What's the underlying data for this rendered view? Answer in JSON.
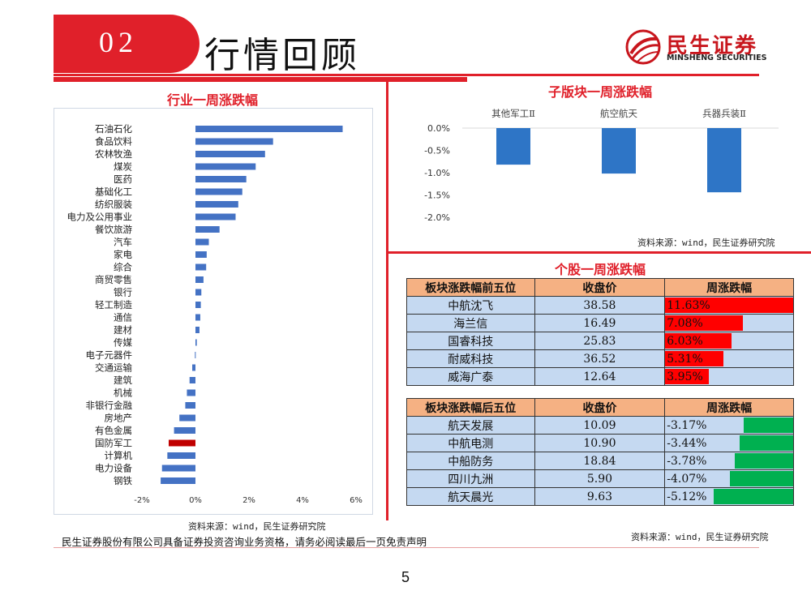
{
  "header": {
    "section_number": "02",
    "title": "行情回顾",
    "logo_cn": "民生证券",
    "logo_en": "MINSHENG SECURITIES",
    "brand_color": "#e0202a"
  },
  "industry_panel": {
    "title": "行业一周涨跌幅",
    "source": "资料来源：wind，民生证券研究院"
  },
  "subsector_panel": {
    "title": "子版块一周涨跌幅",
    "source": "资料来源：wind，民生证券研究院"
  },
  "stock_panel": {
    "title": "个股一周涨跌幅",
    "source": "资料来源：wind，民生证券研究院",
    "top": {
      "headers": [
        "板块涨跌幅前五位",
        "收盘价",
        "周涨跌幅"
      ],
      "rows": [
        {
          "name": "中航沈飞",
          "close": "38.58",
          "change": "11.63%",
          "value": 11.63
        },
        {
          "name": "海兰信",
          "close": "16.49",
          "change": "7.08%",
          "value": 7.08
        },
        {
          "name": "国睿科技",
          "close": "25.83",
          "change": "6.03%",
          "value": 6.03
        },
        {
          "name": "耐威科技",
          "close": "36.52",
          "change": "5.31%",
          "value": 5.31
        },
        {
          "name": "威海广泰",
          "close": "12.64",
          "change": "3.95%",
          "value": 3.95
        }
      ],
      "bar_color": "#ff0000"
    },
    "bottom": {
      "headers": [
        "板块涨跌幅后五位",
        "收盘价",
        "周涨跌幅"
      ],
      "rows": [
        {
          "name": "航天发展",
          "close": "10.09",
          "change": "-3.17%",
          "value": -3.17
        },
        {
          "name": "中航电测",
          "close": "10.90",
          "change": "-3.44%",
          "value": -3.44
        },
        {
          "name": "中船防务",
          "close": "18.84",
          "change": "-3.78%",
          "value": -3.78
        },
        {
          "name": "四川九洲",
          "close": "5.90",
          "change": "-4.07%",
          "value": -4.07
        },
        {
          "name": "航天晨光",
          "close": "9.63",
          "change": "-5.12%",
          "value": -5.12
        }
      ],
      "bar_color": "#00b050"
    }
  },
  "footer": {
    "disclaimer": "民生证券股份有限公司具备证券投资咨询业务资格，请务必阅读最后一页免责声明",
    "page_number": "5"
  },
  "chart_data": [
    {
      "type": "bar",
      "orientation": "horizontal",
      "title": "行业一周涨跌幅",
      "categories": [
        "石油石化",
        "食品饮料",
        "农林牧渔",
        "煤炭",
        "医药",
        "基础化工",
        "纺织服装",
        "电力及公用事业",
        "餐饮旅游",
        "汽车",
        "家电",
        "综合",
        "商贸零售",
        "银行",
        "轻工制造",
        "通信",
        "建材",
        "传媒",
        "电子元器件",
        "交通运输",
        "建筑",
        "机械",
        "非银行金融",
        "房地产",
        "有色金属",
        "国防军工",
        "计算机",
        "电力设备",
        "钢铁"
      ],
      "values": [
        5.5,
        2.9,
        2.6,
        2.25,
        1.9,
        1.75,
        1.6,
        1.5,
        0.9,
        0.5,
        0.42,
        0.4,
        0.3,
        0.22,
        0.2,
        0.18,
        0.15,
        0.05,
        -0.02,
        -0.12,
        -0.22,
        -0.32,
        -0.38,
        -0.6,
        -0.8,
        -1.0,
        -1.05,
        -1.25,
        -1.3
      ],
      "highlight": "国防军工",
      "xlim": [
        -2,
        6
      ],
      "xticks": [
        "-2%",
        "0%",
        "2%",
        "4%",
        "6%"
      ],
      "bar_color": "#4472c4",
      "highlight_color": "#c00000"
    },
    {
      "type": "bar",
      "title": "子版块一周涨跌幅",
      "categories": [
        "其他军工Ⅱ",
        "航空航天",
        "兵器兵装Ⅱ"
      ],
      "values": [
        -0.82,
        -1.02,
        -1.44
      ],
      "ylim": [
        -2.0,
        0.0
      ],
      "yticks": [
        "0.0%",
        "-0.5%",
        "-1.0%",
        "-1.5%",
        "-2.0%"
      ],
      "bar_color": "#2e75c6"
    }
  ]
}
